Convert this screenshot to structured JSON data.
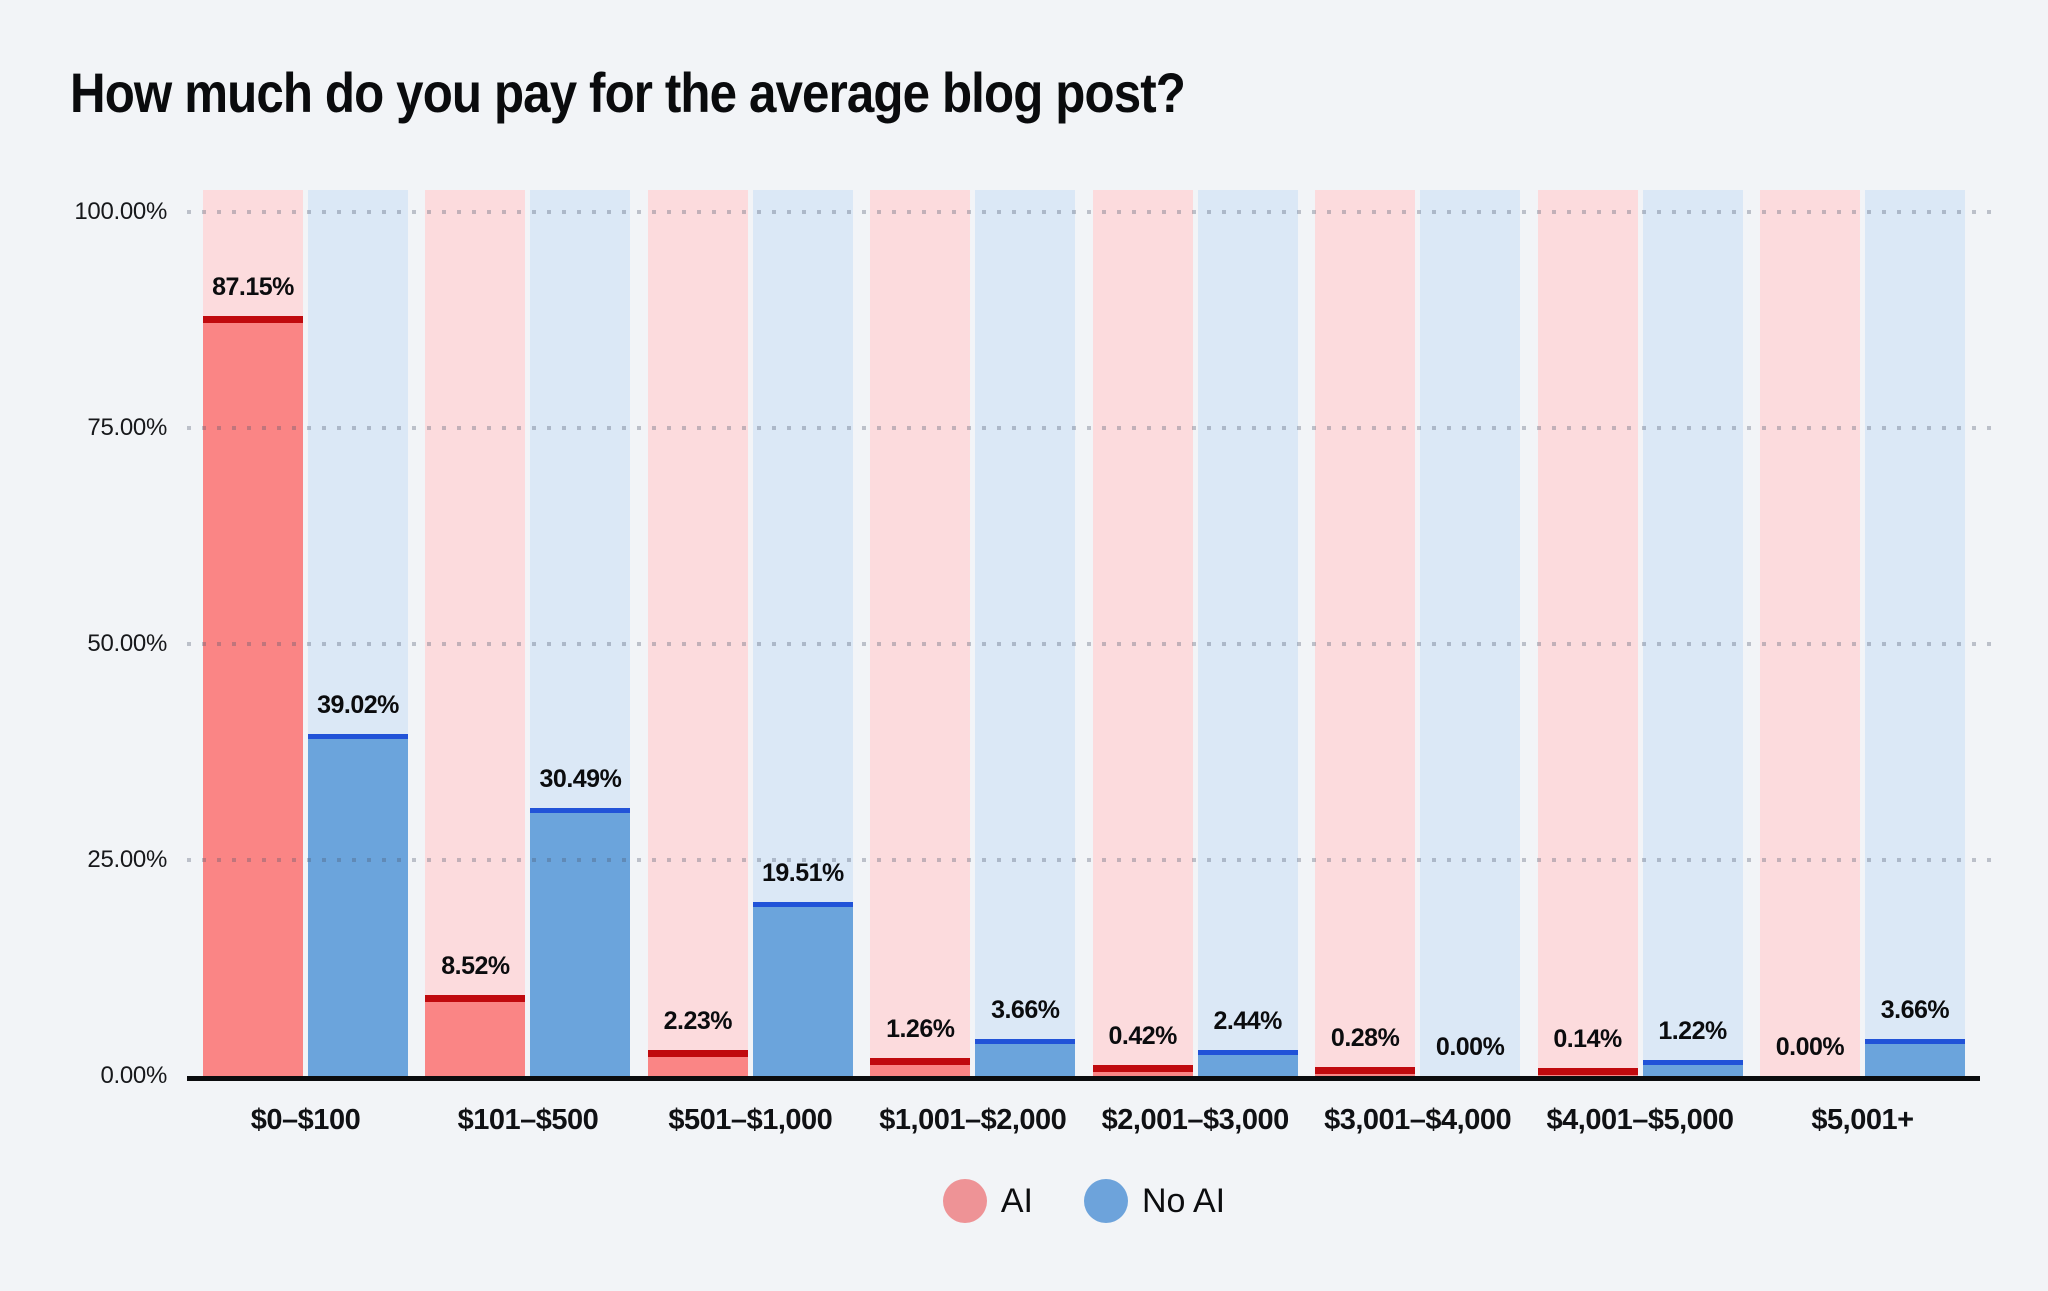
{
  "title": "How much do you pay for the average blog post?",
  "chart_data": {
    "type": "bar",
    "title": "How much do you pay for the average blog post?",
    "categories": [
      "$0–$100",
      "$101–$500",
      "$501–$1,000",
      "$1,001–$2,000",
      "$2,001–$3,000",
      "$3,001–$4,000",
      "$4,001–$5,000",
      "$5,001+"
    ],
    "series": [
      {
        "name": "AI",
        "values": [
          87.15,
          8.52,
          2.23,
          1.26,
          0.42,
          0.28,
          0.14,
          0.0
        ],
        "labels": [
          "87.15%",
          "8.52%",
          "2.23%",
          "1.26%",
          "0.42%",
          "0.28%",
          "0.14%",
          "0.00%"
        ],
        "bar_color": "#FA8585",
        "edge_color": "#C00A0E",
        "track_color": "#FCDBDD",
        "legend_color": "#EE9396"
      },
      {
        "name": "No AI",
        "values": [
          39.02,
          30.49,
          19.51,
          3.66,
          2.44,
          0.0,
          1.22,
          3.66
        ],
        "labels": [
          "39.02%",
          "30.49%",
          "19.51%",
          "3.66%",
          "2.44%",
          "0.00%",
          "1.22%",
          "3.66%"
        ],
        "bar_color": "#6BA4DC",
        "edge_color": "#2153D8",
        "track_color": "#DBE8F6",
        "legend_color": "#6DA3DB"
      }
    ],
    "y_ticks": [
      "100.00%",
      "75.00%",
      "50.00%",
      "25.00%",
      "0.00%"
    ],
    "ylim": [
      0,
      100
    ],
    "xlabel": "",
    "ylabel": "",
    "grid": "dotted horizontal lines at 25% intervals",
    "legend_position": "bottom-center",
    "background_color": "#F2F4F7"
  }
}
